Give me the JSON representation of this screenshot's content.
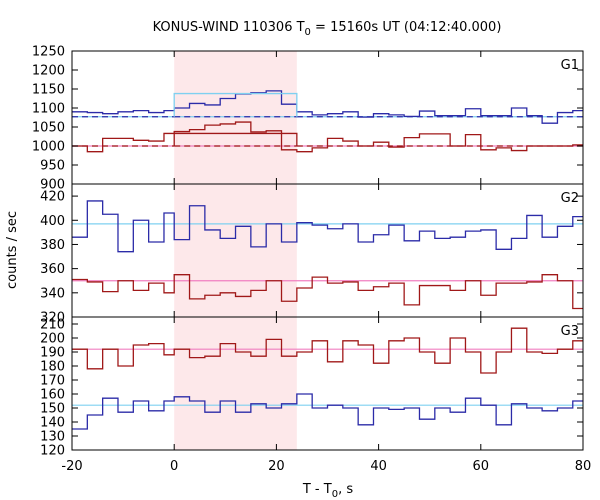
{
  "chart_data": {
    "type": "line",
    "title": "KONUS-WIND 110306 T0 = 15160s UT (04:12:40.000)",
    "title_parts": {
      "prefix": "KONUS-WIND 110306 T",
      "sub": "0",
      "suffix": " = 15160s UT (04:12:40.000)"
    },
    "xlabel": "T - T0, s",
    "xlabel_parts": {
      "prefix": "T - T",
      "sub": "0",
      "suffix": ", s"
    },
    "ylabel": "counts / sec",
    "xlim": [
      -20,
      80
    ],
    "x_ticks": [
      "-20",
      "0",
      "20",
      "40",
      "60",
      "80"
    ],
    "shaded_interval": {
      "x": [
        0,
        24
      ],
      "color": "#fde8ea"
    },
    "bin_edges": [
      -20,
      -17,
      -14,
      -11,
      -8,
      -5,
      -2,
      0,
      3,
      6,
      9,
      12,
      15,
      18,
      21,
      24,
      27,
      30,
      33,
      36,
      39,
      42,
      45,
      48,
      51,
      54,
      57,
      60,
      63,
      66,
      69,
      72,
      75,
      78,
      80
    ],
    "colors": {
      "blue": "#2b2ba8",
      "red": "#a01818",
      "blue_bg": "#7fd0f0",
      "red_bg": "#f07fc0"
    },
    "panels": [
      {
        "label": "G1",
        "ylim": [
          900,
          1250
        ],
        "y_ticks": [
          "900",
          "950",
          "1000",
          "1050",
          "1100",
          "1150",
          "1200",
          "1250"
        ],
        "series": [
          {
            "color": "blue",
            "values": [
              1090,
              1088,
              1085,
              1090,
              1093,
              1088,
              1093,
              1100,
              1112,
              1108,
              1125,
              1137,
              1140,
              1145,
              1110,
              1090,
              1082,
              1085,
              1090,
              1076,
              1085,
              1082,
              1078,
              1092,
              1080,
              1080,
              1098,
              1080,
              1080,
              1100,
              1080,
              1060,
              1088,
              1093
            ],
            "background": 1077,
            "interval_mean": 1077,
            "interval_sum": 1138
          },
          {
            "color": "red",
            "values": [
              1000,
              985,
              1020,
              1020,
              1015,
              1013,
              1033,
              1038,
              1043,
              1055,
              1058,
              1063,
              1037,
              1040,
              990,
              985,
              995,
              1020,
              1013,
              1000,
              1010,
              997,
              1022,
              1032,
              1032,
              1000,
              1030,
              990,
              995,
              988,
              1000,
              1000,
              1000,
              1003
            ],
            "background": 1000,
            "interval_mean": 1000,
            "interval_sum": 1033
          }
        ]
      },
      {
        "label": "G2",
        "ylim": [
          320,
          430
        ],
        "y_ticks": [
          "320",
          "340",
          "360",
          "380",
          "400",
          "420"
        ],
        "series": [
          {
            "color": "blue",
            "values": [
              386,
              416,
              405,
              374,
              400,
              382,
              406,
              384,
              412,
              392,
              385,
              395,
              378,
              397,
              382,
              398,
              396,
              393,
              397,
              382,
              388,
              396,
              383,
              391,
              385,
              386,
              391,
              392,
              376,
              385,
              404,
              386,
              395,
              403
            ],
            "background": 397
          },
          {
            "color": "red",
            "values": [
              351,
              349,
              341,
              350,
              342,
              348,
              340,
              355,
              335,
              338,
              340,
              337,
              342,
              350,
              333,
              344,
              353,
              348,
              349,
              342,
              345,
              348,
              330,
              346,
              346,
              342,
              350,
              338,
              348,
              348,
              349,
              355,
              350,
              327
            ],
            "background": 350
          }
        ]
      },
      {
        "label": "G3",
        "ylim": [
          120,
          215
        ],
        "y_ticks": [
          "120",
          "130",
          "140",
          "150",
          "160",
          "170",
          "180",
          "190",
          "200",
          "210"
        ],
        "series": [
          {
            "color": "red",
            "values": [
              192,
              178,
              192,
              180,
              195,
              196,
              188,
              192,
              186,
              187,
              196,
              190,
              187,
              199,
              187,
              190,
              198,
              183,
              198,
              195,
              182,
              198,
              200,
              190,
              182,
              200,
              190,
              175,
              190,
              207,
              190,
              189,
              192,
              198
            ],
            "background": 192
          },
          {
            "color": "blue",
            "values": [
              135,
              145,
              157,
              147,
              155,
              148,
              155,
              158,
              155,
              147,
              155,
              147,
              153,
              150,
              153,
              160,
              150,
              152,
              150,
              138,
              150,
              149,
              150,
              142,
              150,
              147,
              157,
              152,
              138,
              153,
              150,
              148,
              150,
              155
            ],
            "background": 152
          }
        ]
      }
    ]
  }
}
